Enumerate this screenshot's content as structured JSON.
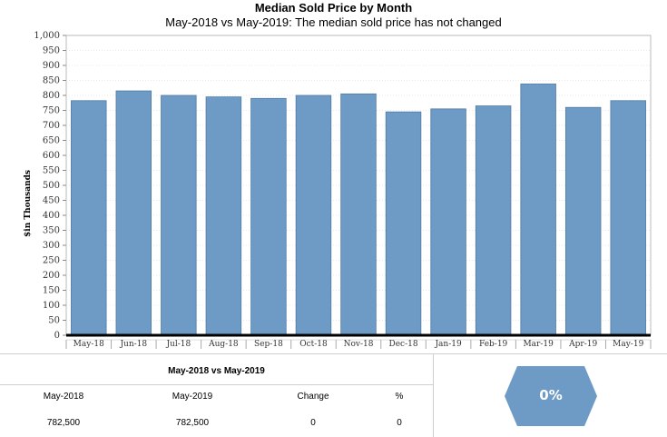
{
  "title": "Median Sold Price by Month",
  "subtitle": "May-2018 vs May-2019: The median sold price has not changed",
  "chart_data": {
    "type": "bar",
    "title": "Median Sold Price by Month",
    "subtitle": "May-2018 vs May-2019: The median sold price has not changed",
    "ylabel": "$in Thousands",
    "xlabel": "",
    "ylim": [
      0,
      1000
    ],
    "yticks": [
      0,
      50,
      100,
      150,
      200,
      250,
      300,
      350,
      400,
      450,
      500,
      550,
      600,
      650,
      700,
      750,
      800,
      850,
      900,
      950,
      1000
    ],
    "ytick_labels": [
      "0",
      "50",
      "100",
      "150",
      "200",
      "250",
      "300",
      "350",
      "400",
      "450",
      "500",
      "550",
      "600",
      "650",
      "700",
      "750",
      "800",
      "850",
      "900",
      "950",
      "1,000"
    ],
    "grid": true,
    "categories": [
      "May-18",
      "Jun-18",
      "Jul-18",
      "Aug-18",
      "Sep-18",
      "Oct-18",
      "Nov-18",
      "Dec-18",
      "Jan-19",
      "Feb-19",
      "Mar-19",
      "Apr-19",
      "May-19"
    ],
    "values": [
      782.5,
      815,
      800,
      795,
      790,
      800,
      805,
      745,
      755,
      765,
      838,
      760,
      782.5
    ],
    "bar_color": "#6e9bc5"
  },
  "comparison": {
    "title": "May-2018 vs May-2019",
    "headers": [
      "May-2018",
      "May-2019",
      "Change",
      "%"
    ],
    "values": [
      "782,500",
      "782,500",
      "0",
      "0"
    ],
    "percent_badge": "0%",
    "badge_color": "#6e9bc5"
  }
}
